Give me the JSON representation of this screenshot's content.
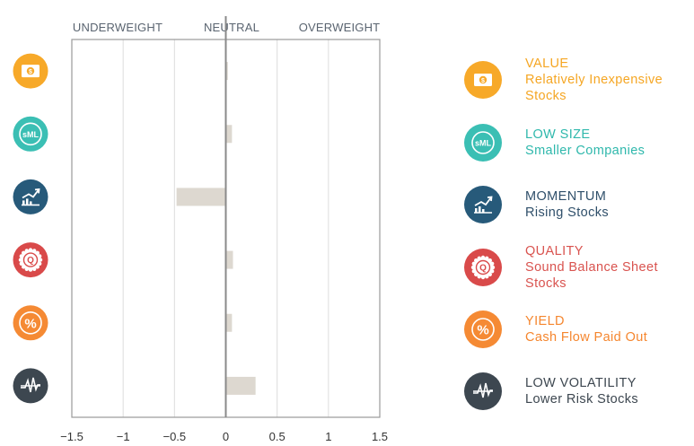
{
  "header": {
    "left": "UNDERWEIGHT",
    "center": "NEUTRAL",
    "right": "OVERWEIGHT"
  },
  "chart_data": {
    "type": "bar",
    "orientation": "horizontal",
    "categories": [
      "VALUE",
      "LOW SIZE",
      "MOMENTUM",
      "QUALITY",
      "YIELD",
      "LOW VOLATILITY"
    ],
    "values": [
      0.02,
      0.06,
      -0.48,
      0.07,
      0.06,
      0.29
    ],
    "xlim": [
      -1.5,
      1.5
    ],
    "xticks": [
      -1.5,
      -1,
      -0.5,
      0,
      0.5,
      1,
      1.5
    ],
    "xtick_labels": [
      "−1.5",
      "−1",
      "−0.5",
      "0",
      "0.5",
      "1",
      "1.5"
    ],
    "grid": true,
    "bar_color": "#ddd8d0"
  },
  "factors": [
    {
      "id": "value",
      "title": "VALUE",
      "subtitle": "Relatively Inexpensive Stocks",
      "lines": [
        "VALUE",
        "Relatively Inexpensive",
        "Stocks"
      ],
      "color": "#f7a929",
      "text_color": "#f5a623",
      "icon": "dollar-bill-icon"
    },
    {
      "id": "low-size",
      "title": "LOW SIZE",
      "subtitle": "Smaller Companies",
      "lines": [
        "LOW SIZE",
        "Smaller Companies"
      ],
      "color": "#3bbfb4",
      "text_color": "#2fb8ac",
      "icon": "sml-icon"
    },
    {
      "id": "momentum",
      "title": "MOMENTUM",
      "subtitle": "Rising Stocks",
      "lines": [
        "MOMENTUM",
        "Rising Stocks"
      ],
      "color": "#275a7a",
      "text_color": "#2f4f6a",
      "icon": "rising-chart-icon"
    },
    {
      "id": "quality",
      "title": "QUALITY",
      "subtitle": "Sound Balance Sheet Stocks",
      "lines": [
        "QUALITY",
        "Sound Balance Sheet",
        "Stocks"
      ],
      "color": "#d94a4a",
      "text_color": "#d9534f",
      "icon": "quality-seal-icon"
    },
    {
      "id": "yield",
      "title": "YIELD",
      "subtitle": "Cash Flow Paid Out",
      "lines": [
        "YIELD",
        "Cash Flow Paid Out"
      ],
      "color": "#f58a34",
      "text_color": "#f5862e",
      "icon": "percent-icon"
    },
    {
      "id": "low-volatility",
      "title": "LOW VOLATILITY",
      "subtitle": "Lower Risk Stocks",
      "lines": [
        "LOW VOLATILITY",
        "Lower Risk Stocks"
      ],
      "color": "#3d4750",
      "text_color": "#3d4750",
      "icon": "volatility-line-icon"
    }
  ]
}
